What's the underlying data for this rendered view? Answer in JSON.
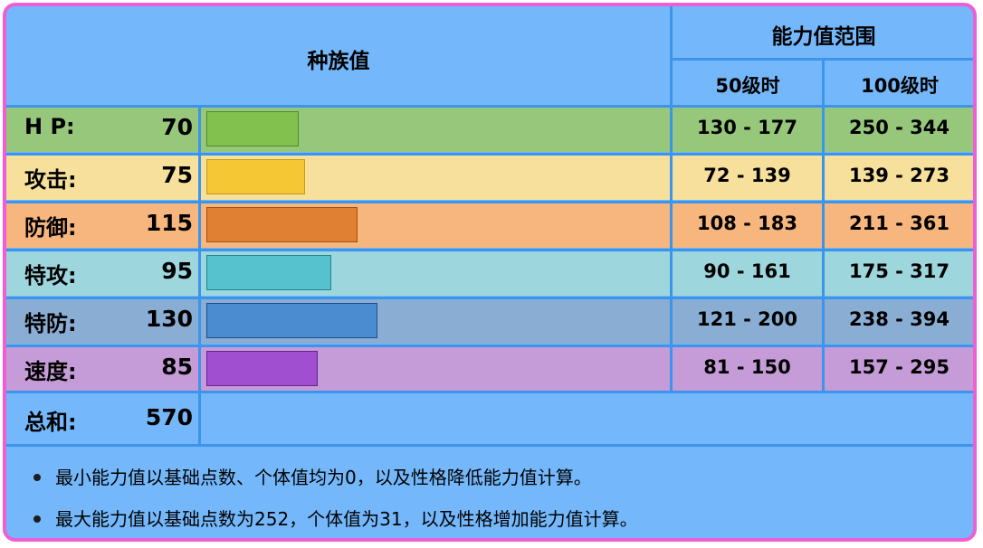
{
  "header": {
    "base_stats_title": "种族值",
    "range_title": "能力值范围",
    "level50_label": "50级时",
    "level100_label": "100级时"
  },
  "stats": [
    {
      "label": "H P:",
      "value": 70,
      "lv50": "130 - 177",
      "lv100": "250 - 344",
      "row_color": "#97c77b",
      "bar_color": "#82c14d",
      "bar_border": "#4d8a2a"
    },
    {
      "label": "攻击:",
      "value": 75,
      "lv50": "72 - 139",
      "lv100": "139 - 273",
      "row_color": "#f7e09b",
      "bar_color": "#f5c735",
      "bar_border": "#c49b1c"
    },
    {
      "label": "防御:",
      "value": 115,
      "lv50": "108 - 183",
      "lv100": "211 - 361",
      "row_color": "#f6b67e",
      "bar_color": "#e08032",
      "bar_border": "#a24e13"
    },
    {
      "label": "特攻:",
      "value": 95,
      "lv50": "90 - 161",
      "lv100": "175 - 317",
      "row_color": "#9dd6dc",
      "bar_color": "#55c2cd",
      "bar_border": "#23858f"
    },
    {
      "label": "特防:",
      "value": 130,
      "lv50": "121 - 200",
      "lv100": "238 - 394",
      "row_color": "#8aadd3",
      "bar_color": "#4b8cd0",
      "bar_border": "#1d4f8d"
    },
    {
      "label": "速度:",
      "value": 85,
      "lv50": "81 - 150",
      "lv100": "157 - 295",
      "row_color": "#c59cd7",
      "bar_color": "#9f4fd0",
      "bar_border": "#6a2191"
    }
  ],
  "total": {
    "label": "总和:",
    "value": 570
  },
  "max_bar_value": 255,
  "notes": [
    "最小能力值以基础点数、个体值均为0，以及性格降低能力值计算。",
    "最大能力值以基础点数为252，个体值为31，以及性格增加能力值计算。"
  ]
}
